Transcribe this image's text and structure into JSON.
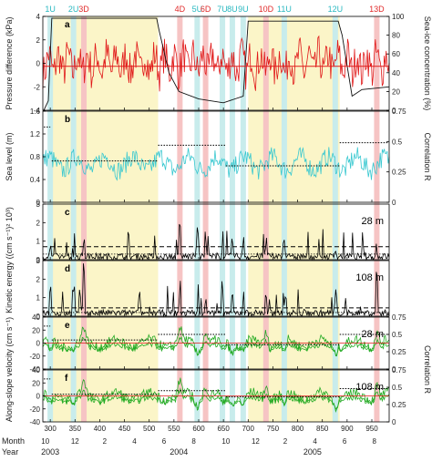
{
  "chart_data": {
    "type": "line",
    "x_axis": {
      "label_month": "Month",
      "label_year": "Year",
      "day_ticks": [
        300,
        350,
        400,
        450,
        500,
        550,
        600,
        650,
        700,
        750,
        800,
        850,
        900,
        950
      ],
      "xlim": [
        285,
        985
      ],
      "months": [
        {
          "label": "10",
          "day": 290
        },
        {
          "label": "12",
          "day": 350
        },
        {
          "label": "2",
          "day": 410
        },
        {
          "label": "4",
          "day": 470
        },
        {
          "label": "6",
          "day": 530
        },
        {
          "label": "8",
          "day": 590
        },
        {
          "label": "10",
          "day": 655
        },
        {
          "label": "12",
          "day": 715
        },
        {
          "label": "2",
          "day": 775
        },
        {
          "label": "4",
          "day": 835
        },
        {
          "label": "6",
          "day": 895
        },
        {
          "label": "8",
          "day": 955
        }
      ],
      "years": [
        {
          "label": "2003",
          "day": 300
        },
        {
          "label": "2004",
          "day": 560
        },
        {
          "label": "2005",
          "day": 830
        }
      ]
    },
    "ice_periods": [
      [
        303,
        518
      ],
      [
        700,
        885
      ]
    ],
    "events": [
      {
        "label": "1U",
        "day": 300,
        "type": "upwelling"
      },
      {
        "label": "2U",
        "day": 347,
        "type": "upwelling"
      },
      {
        "label": "3D",
        "day": 368,
        "type": "downwelling"
      },
      {
        "label": "4D",
        "day": 562,
        "type": "downwelling"
      },
      {
        "label": "5U",
        "day": 597,
        "type": "upwelling"
      },
      {
        "label": "6D",
        "day": 614,
        "type": "downwelling"
      },
      {
        "label": "7U",
        "day": 648,
        "type": "upwelling"
      },
      {
        "label": "8U",
        "day": 668,
        "type": "upwelling"
      },
      {
        "label": "9U",
        "day": 690,
        "type": "upwelling"
      },
      {
        "label": "10D",
        "day": 736,
        "type": "downwelling"
      },
      {
        "label": "11U",
        "day": 773,
        "type": "upwelling"
      },
      {
        "label": "12U",
        "day": 876,
        "type": "upwelling"
      },
      {
        "label": "13D",
        "day": 960,
        "type": "downwelling"
      }
    ],
    "event_colors": {
      "upwelling": "#c8ecec",
      "downwelling": "#f6c4c4",
      "ice": "#fbf5c8"
    },
    "panels": [
      {
        "letter": "a",
        "ylabel": "Pressure difference (kPa)",
        "ylim": [
          -4,
          4
        ],
        "yticks": [
          -4,
          -2,
          0,
          2,
          4
        ],
        "y2label": "Sea-ice concentration (%)",
        "y2lim": [
          0,
          100
        ],
        "y2ticks": [
          0,
          20,
          40,
          60,
          80,
          100
        ],
        "series": [
          {
            "role": "pressure difference",
            "color": "#e01818",
            "values_range": [
              -2.8,
              3.6
            ]
          },
          {
            "role": "sea-ice concentration",
            "color": "#111111",
            "axis": "right",
            "points": [
              [
                287,
                0
              ],
              [
                296,
                10
              ],
              [
                303,
                98
              ],
              [
                515,
                98
              ],
              [
                520,
                85
              ],
              [
                540,
                40
              ],
              [
                560,
                20
              ],
              [
                600,
                12
              ],
              [
                650,
                8
              ],
              [
                690,
                15
              ],
              [
                700,
                95
              ],
              [
                882,
                95
              ],
              [
                890,
                80
              ],
              [
                910,
                15
              ],
              [
                930,
                22
              ],
              [
                985,
                25
              ]
            ]
          }
        ],
        "reference_lines": [
          {
            "y": -0.25,
            "color": "#e01818"
          }
        ]
      },
      {
        "letter": "b",
        "ylabel": "Sea level (m)",
        "ylim": [
          0,
          1.6
        ],
        "yticks": [
          0,
          0.4,
          0.8,
          1.2,
          1.6
        ],
        "y2label": "Correlation R",
        "y2lim": [
          0,
          0.75
        ],
        "y2ticks": [
          0,
          0.25,
          0.5,
          0.75
        ],
        "series": [
          {
            "role": "sea level",
            "color": "#38c8d0",
            "values_range": [
              0.3,
              1.3
            ]
          }
        ],
        "correlation_steps": [
          [
            287,
            300,
            0.62
          ],
          [
            303,
            518,
            0.34
          ],
          [
            518,
            655,
            0.47
          ],
          [
            655,
            885,
            0.3
          ],
          [
            885,
            985,
            0.49
          ]
        ]
      },
      {
        "letter": "c",
        "ylabel": "Kinetic energy ((cm s⁻¹)² 10³)",
        "ylim": [
          0,
          3
        ],
        "yticks": [
          0,
          1,
          2,
          3
        ],
        "depth_label": "28 m",
        "series": [
          {
            "role": "kinetic energy",
            "color": "#000000",
            "values_range": [
              0,
              2.8
            ]
          }
        ],
        "threshold_dashed": 0.7,
        "threshold_dotted": 0.3
      },
      {
        "letter": "d",
        "ylim": [
          0,
          3
        ],
        "yticks": [
          0,
          1,
          2,
          3
        ],
        "depth_label": "108 m",
        "series": [
          {
            "role": "kinetic energy",
            "color": "#000000",
            "values_range": [
              0,
              3
            ]
          }
        ],
        "threshold_dashed": 0.45,
        "threshold_dotted": 0.2
      },
      {
        "letter": "e",
        "ylabel": "Along-slope velocity (cm s⁻¹)",
        "ylim": [
          -40,
          40
        ],
        "yticks": [
          -40,
          -20,
          0,
          20,
          40
        ],
        "y2label": "Correlation R",
        "y2lim": [
          0,
          0.75
        ],
        "y2ticks": [
          0,
          0.25,
          0.5,
          0.75
        ],
        "depth_label": "28 m",
        "series": [
          {
            "role": "along-slope velocity",
            "color": "#22aa22",
            "values_range": [
              -30,
              42
            ]
          }
        ],
        "correlation_steps": [
          [
            287,
            300,
            0.62
          ],
          [
            303,
            518,
            0.42
          ],
          [
            518,
            655,
            0.5
          ],
          [
            655,
            885,
            0.35
          ],
          [
            885,
            985,
            0.5
          ]
        ]
      },
      {
        "letter": "f",
        "ylim": [
          -40,
          40
        ],
        "yticks": [
          -40,
          -20,
          0,
          20,
          40
        ],
        "y2lim": [
          0,
          0.75
        ],
        "y2ticks": [
          0,
          0.25,
          0.5,
          0.75
        ],
        "depth_label": "108 m",
        "series": [
          {
            "role": "along-slope velocity",
            "color": "#22aa22",
            "values_range": [
              -25,
              38
            ]
          }
        ],
        "correlation_steps": [
          [
            287,
            300,
            0.62
          ],
          [
            303,
            518,
            0.4
          ],
          [
            518,
            655,
            0.45
          ],
          [
            655,
            885,
            0.36
          ],
          [
            885,
            985,
            0.48
          ]
        ]
      }
    ],
    "grid": false,
    "legend": "none"
  }
}
